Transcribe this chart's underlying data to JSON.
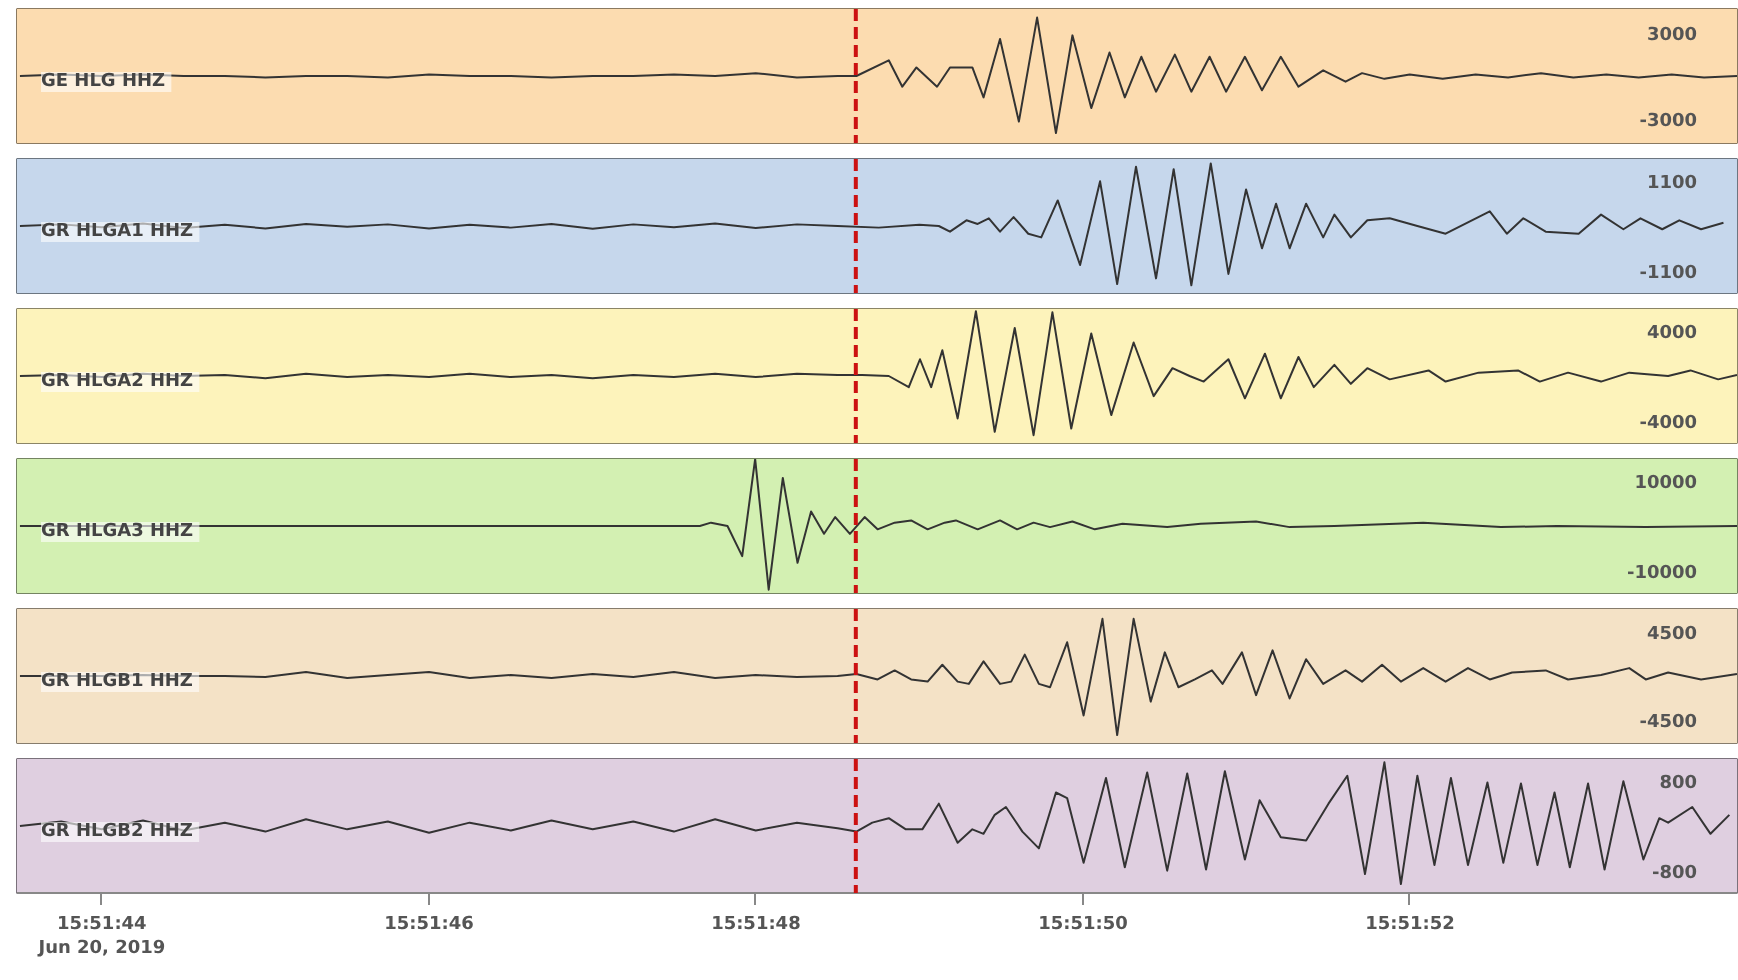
{
  "chart_data": [
    {
      "type": "line",
      "xlim": [
        15.862078,
        15.865
      ],
      "ylim": [
        -4700,
        4700
      ],
      "yticks": [
        3000,
        -3000
      ],
      "tick_labels": "y",
      "bands": [
        {
          "axis": "x",
          "from": 15.862078,
          "to": 15.865,
          "color": "#fcdcb0"
        }
      ],
      "ref_lines": [
        {
          "axis": "x",
          "value": 15.863503,
          "color": "#cc1111",
          "line_style": "dashed"
        }
      ],
      "x": [
        15.862083,
        15.862153,
        15.862222,
        15.862292,
        15.862361,
        15.862431,
        15.8625,
        15.862569,
        15.862639,
        15.862708,
        15.862778,
        15.862847,
        15.862917,
        15.862986,
        15.863056,
        15.863125,
        15.863194,
        15.863264,
        15.863333,
        15.863403,
        15.863472,
        15.863504,
        15.863559,
        15.863582,
        15.863606,
        15.863641,
        15.863663,
        15.863701,
        15.86372,
        15.863748,
        15.86378,
        15.863811,
        15.863843,
        15.863871,
        15.863903,
        15.863934,
        15.86396,
        15.863988,
        15.864013,
        15.864045,
        15.864073,
        15.864104,
        15.864132,
        15.864164,
        15.864193,
        15.864225,
        15.864255,
        15.864297,
        15.864335,
        15.864363,
        15.864401,
        15.864444,
        15.8645,
        15.864556,
        15.864611,
        15.864667,
        15.864722,
        15.864778,
        15.864833,
        15.864889,
        15.864944,
        15.865
      ],
      "series": [
        {
          "name": "GE HLG  HHZ",
          "color": "#333333",
          "values": [
            0,
            100,
            0,
            100,
            0,
            0,
            -100,
            0,
            0,
            -100,
            100,
            0,
            0,
            -100,
            0,
            0,
            100,
            0,
            200,
            -100,
            0,
            0,
            1100,
            -750,
            600,
            -750,
            600,
            600,
            -1500,
            2600,
            -3200,
            4100,
            -4000,
            2850,
            -2250,
            1650,
            -1500,
            1350,
            -1100,
            1500,
            -1100,
            1350,
            -1100,
            1350,
            -1000,
            1350,
            -750,
            400,
            -400,
            200,
            -200,
            100,
            -200,
            100,
            -100,
            200,
            -100,
            100,
            -100,
            100,
            -100,
            0
          ]
        }
      ]
    },
    {
      "type": "line",
      "xlim": [
        15.862078,
        15.865
      ],
      "ylim": [
        -1650,
        1650
      ],
      "yticks": [
        1100,
        -1100
      ],
      "tick_labels": "y",
      "bands": [
        {
          "axis": "x",
          "from": 15.862078,
          "to": 15.865,
          "color": "#c6d7ec"
        }
      ],
      "ref_lines": [
        {
          "axis": "x",
          "value": 15.863503,
          "color": "#cc1111",
          "line_style": "dashed"
        }
      ],
      "x": [
        15.862083,
        15.862153,
        15.862222,
        15.862292,
        15.862361,
        15.862431,
        15.8625,
        15.862569,
        15.862639,
        15.862708,
        15.862778,
        15.862847,
        15.862917,
        15.862986,
        15.863056,
        15.863125,
        15.863194,
        15.863264,
        15.863333,
        15.863403,
        15.863472,
        15.863542,
        15.863611,
        15.863644,
        15.863663,
        15.863691,
        15.86371,
        15.863729,
        15.863748,
        15.863771,
        15.863796,
        15.863818,
        15.863846,
        15.863884,
        15.863918,
        15.863947,
        15.863979,
        15.864013,
        15.864043,
        15.864073,
        15.864106,
        15.864136,
        15.864166,
        15.864193,
        15.864217,
        15.86424,
        15.864268,
        15.864297,
        15.864316,
        15.864344,
        15.864372,
        15.86441,
        15.864457,
        15.864505,
        15.86458,
        15.864609,
        15.864637,
        15.864675,
        15.864731,
        15.864769,
        15.864807,
        15.864836,
        15.864873,
        15.864902,
        15.864939,
        15.864977
      ],
      "series": [
        {
          "name": "GR HLGA1  HHZ",
          "color": "#333333",
          "values": [
            0,
            40,
            -30,
            60,
            -50,
            30,
            -60,
            50,
            -20,
            40,
            -60,
            30,
            -40,
            50,
            -70,
            40,
            -30,
            60,
            -50,
            40,
            0,
            -40,
            30,
            0,
            -140,
            140,
            50,
            190,
            -140,
            220,
            -190,
            -280,
            630,
            -960,
            1100,
            -1430,
            1460,
            -1290,
            1400,
            -1460,
            1540,
            -1180,
            900,
            -550,
            550,
            -550,
            550,
            -280,
            280,
            -280,
            140,
            190,
            0,
            -190,
            360,
            -190,
            190,
            -140,
            -190,
            280,
            -80,
            190,
            -80,
            140,
            -80,
            80
          ]
        }
      ]
    },
    {
      "type": "line",
      "xlim": [
        15.862078,
        15.865
      ],
      "ylim": [
        -6000,
        6000
      ],
      "yticks": [
        4000,
        -4000
      ],
      "tick_labels": "y",
      "bands": [
        {
          "axis": "x",
          "from": 15.862078,
          "to": 15.865,
          "color": "#fdf3bb"
        }
      ],
      "ref_lines": [
        {
          "axis": "x",
          "value": 15.863503,
          "color": "#cc1111",
          "line_style": "dashed"
        }
      ],
      "x": [
        15.862083,
        15.862153,
        15.862222,
        15.862292,
        15.862361,
        15.862431,
        15.8625,
        15.862569,
        15.862639,
        15.862708,
        15.862778,
        15.862847,
        15.862917,
        15.862986,
        15.863056,
        15.863125,
        15.863194,
        15.863264,
        15.863333,
        15.863403,
        15.863472,
        15.863514,
        15.863559,
        15.863593,
        15.863612,
        15.863631,
        15.86365,
        15.863676,
        15.863707,
        15.863739,
        15.863773,
        15.863805,
        15.863837,
        15.863869,
        15.863903,
        15.863937,
        15.863975,
        15.864009,
        15.864041,
        15.86407,
        15.864094,
        15.864136,
        15.864164,
        15.864198,
        15.864225,
        15.864255,
        15.864281,
        15.864316,
        15.864344,
        15.864372,
        15.86441,
        15.864476,
        15.864505,
        15.864561,
        15.864628,
        15.864665,
        15.864713,
        15.864769,
        15.864817,
        15.864883,
        15.864921,
        15.864968,
        15.865
      ],
      "series": [
        {
          "name": "GR HLGA2  HHZ",
          "color": "#333333",
          "values": [
            0,
            100,
            -100,
            200,
            0,
            100,
            -200,
            200,
            -100,
            100,
            -100,
            200,
            -100,
            100,
            -200,
            100,
            -100,
            200,
            -100,
            200,
            100,
            100,
            0,
            -1000,
            1500,
            -1000,
            2300,
            -3800,
            5800,
            -5000,
            4300,
            -5300,
            5700,
            -4700,
            3800,
            -3500,
            3000,
            -1800,
            700,
            0,
            -500,
            1500,
            -2000,
            2000,
            -2000,
            1700,
            -1000,
            1000,
            -700,
            700,
            -300,
            500,
            -500,
            300,
            500,
            -500,
            300,
            -500,
            300,
            0,
            500,
            -300,
            100
          ]
        }
      ]
    },
    {
      "type": "line",
      "xlim": [
        15.862078,
        15.865
      ],
      "ylim": [
        -15000,
        15000
      ],
      "yticks": [
        10000,
        -10000
      ],
      "tick_labels": "y",
      "bands": [
        {
          "axis": "x",
          "from": 15.862078,
          "to": 15.865,
          "color": "#d3f0b2"
        }
      ],
      "ref_lines": [
        {
          "axis": "x",
          "value": 15.863503,
          "color": "#cc1111",
          "line_style": "dashed"
        }
      ],
      "x": [
        15.862083,
        15.862222,
        15.862361,
        15.8625,
        15.862639,
        15.862778,
        15.862917,
        15.863056,
        15.863194,
        15.863238,
        15.863257,
        15.863285,
        15.86331,
        15.863332,
        15.863355,
        15.863379,
        15.863404,
        15.863427,
        15.863449,
        15.863468,
        15.863493,
        15.863518,
        15.86354,
        15.863569,
        15.863597,
        15.863625,
        15.863654,
        15.863673,
        15.86371,
        15.863748,
        15.863777,
        15.863805,
        15.863833,
        15.863871,
        15.863909,
        15.863956,
        15.864032,
        15.864089,
        15.864183,
        15.86424,
        15.864316,
        15.864467,
        15.864599,
        15.864694,
        15.864845,
        15.865
      ],
      "series": [
        {
          "name": "GR HLGA3  HHZ",
          "color": "#333333",
          "values": [
            0,
            0,
            0,
            0,
            0,
            0,
            0,
            0,
            0,
            0,
            750,
            0,
            -6750,
            15000,
            -14250,
            10750,
            -8250,
            3250,
            -1750,
            2000,
            -1750,
            2000,
            -750,
            750,
            1250,
            -750,
            750,
            1250,
            -750,
            1250,
            -750,
            750,
            -250,
            1000,
            -750,
            500,
            -250,
            500,
            1000,
            -250,
            0,
            750,
            -250,
            0,
            -250,
            0
          ]
        }
      ]
    },
    {
      "type": "line",
      "xlim": [
        15.862078,
        15.865
      ],
      "ylim": [
        -6800,
        6800
      ],
      "yticks": [
        4500,
        -4500
      ],
      "tick_labels": "y",
      "bands": [
        {
          "axis": "x",
          "from": 15.862078,
          "to": 15.865,
          "color": "#f4e2c6"
        }
      ],
      "ref_lines": [
        {
          "axis": "x",
          "value": 15.863503,
          "color": "#cc1111",
          "line_style": "dashed"
        }
      ],
      "x": [
        15.862083,
        15.862153,
        15.862222,
        15.862292,
        15.862361,
        15.862431,
        15.8625,
        15.862569,
        15.862639,
        15.862708,
        15.862778,
        15.862847,
        15.862917,
        15.862986,
        15.863056,
        15.863125,
        15.863194,
        15.863264,
        15.863333,
        15.863403,
        15.863472,
        15.863504,
        15.86354,
        15.863569,
        15.863597,
        15.863625,
        15.86365,
        15.863676,
        15.863695,
        15.86372,
        15.863748,
        15.863767,
        15.86379,
        15.863814,
        15.863833,
        15.863862,
        15.86389,
        15.863922,
        15.863947,
        15.863975,
        15.864004,
        15.864028,
        15.864051,
        15.864079,
        15.864108,
        15.864126,
        15.864159,
        15.864183,
        15.864211,
        15.86424,
        15.864268,
        15.864297,
        15.864335,
        15.864363,
        15.864397,
        15.864429,
        15.864467,
        15.864505,
        15.864543,
        15.86458,
        15.864618,
        15.864675,
        15.864713,
        15.864769,
        15.864817,
        15.864845,
        15.864883,
        15.864939,
        15.865
      ],
      "series": [
        {
          "name": "GR HLGB1  HHZ",
          "color": "#333333",
          "values": [
            0,
            0,
            0,
            100,
            0,
            0,
            -100,
            400,
            -200,
            100,
            400,
            -200,
            100,
            -200,
            200,
            -100,
            400,
            -200,
            100,
            -100,
            0,
            200,
            -350,
            570,
            -350,
            -570,
            1140,
            -570,
            -800,
            1480,
            -800,
            -570,
            2170,
            -800,
            -1140,
            3420,
            -4000,
            5800,
            -6000,
            5800,
            -2600,
            2400,
            -1140,
            -350,
            570,
            -800,
            2400,
            -1940,
            2600,
            -2280,
            1700,
            -800,
            570,
            -570,
            1140,
            -570,
            800,
            -570,
            800,
            -350,
            350,
            570,
            -350,
            100,
            800,
            -350,
            350,
            -350,
            200
          ]
        }
      ]
    },
    {
      "type": "line",
      "xlim": [
        15.862078,
        15.865
      ],
      "ylim": [
        -1200,
        1200
      ],
      "yticks": [
        800,
        -800
      ],
      "xticks": [
        {
          "value": 15.8622222,
          "label": "15:51:44\nJun 20, 2019"
        },
        {
          "value": 15.8627778,
          "label": "15:51:46"
        },
        {
          "value": 15.8633333,
          "label": "15:51:48"
        },
        {
          "value": 15.8638889,
          "label": "15:51:50"
        },
        {
          "value": 15.8644444,
          "label": "15:51:52"
        }
      ],
      "bands": [
        {
          "axis": "x",
          "from": 15.862078,
          "to": 15.865,
          "color": "#dfcfe0"
        }
      ],
      "ref_lines": [
        {
          "axis": "x",
          "value": 15.863503,
          "color": "#cc1111",
          "line_style": "dashed"
        }
      ],
      "x": [
        15.862083,
        15.862153,
        15.862222,
        15.862292,
        15.862361,
        15.862431,
        15.8625,
        15.862569,
        15.862639,
        15.862708,
        15.862778,
        15.862847,
        15.862917,
        15.862986,
        15.863056,
        15.863125,
        15.863194,
        15.863264,
        15.863333,
        15.863403,
        15.863472,
        15.863504,
        15.863531,
        15.863559,
        15.863588,
        15.863616,
        15.863644,
        15.863676,
        15.863701,
        15.86372,
        15.863739,
        15.863758,
        15.863786,
        15.863814,
        15.863843,
        15.863862,
        15.86389,
        15.863928,
        15.86396,
        15.863998,
        15.864032,
        15.864066,
        15.864098,
        15.86413,
        15.864164,
        15.864189,
        15.864225,
        15.864268,
        15.864306,
        15.864338,
        15.864368,
        15.864401,
        15.864429,
        15.864457,
        15.864486,
        15.864514,
        15.864543,
        15.864576,
        15.864603,
        15.864633,
        15.864661,
        15.86469,
        15.864716,
        15.864747,
        15.864775,
        15.864807,
        15.864841,
        15.864868,
        15.864883,
        15.864924,
        15.864955,
        15.864987
      ],
      "series": [
        {
          "name": "GR HLGB2  HHZ",
          "color": "#333333",
          "values": [
            0,
            80,
            -60,
            100,
            -80,
            60,
            -100,
            120,
            -60,
            80,
            -120,
            60,
            -80,
            100,
            -60,
            80,
            -100,
            120,
            -80,
            60,
            -40,
            -100,
            60,
            140,
            -60,
            -60,
            400,
            -300,
            -60,
            -140,
            200,
            340,
            -100,
            -400,
            600,
            500,
            -660,
            860,
            -740,
            960,
            -800,
            940,
            -780,
            980,
            -600,
            460,
            -200,
            -260,
            400,
            900,
            -860,
            1140,
            -1040,
            900,
            -700,
            860,
            -700,
            780,
            -660,
            760,
            -700,
            600,
            -740,
            760,
            -780,
            800,
            -600,
            140,
            60,
            340,
            -140,
            200
          ]
        }
      ]
    }
  ]
}
